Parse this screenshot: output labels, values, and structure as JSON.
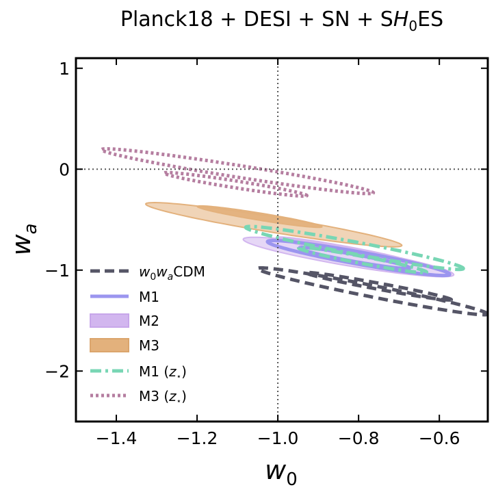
{
  "chart_data": {
    "type": "contour",
    "title": {
      "main": "Planck18 + DESI + SN + S",
      "italic": "H",
      "subscript": "0",
      "suffix": "ES"
    },
    "xlabel": {
      "base": "w",
      "sub": "0"
    },
    "ylabel": {
      "base": "w",
      "sub": "a"
    },
    "xlim": [
      -1.5,
      -0.48
    ],
    "ylim": [
      -2.5,
      1.1
    ],
    "xticks": [
      -1.4,
      -1.2,
      -1.0,
      -0.8,
      -0.6
    ],
    "xtick_labels": [
      "−1.4",
      "−1.2",
      "−1.0",
      "−0.8",
      "−0.6"
    ],
    "yticks": [
      -2,
      -1,
      0,
      1
    ],
    "ytick_labels": [
      "−2",
      "−1",
      "0",
      "1"
    ],
    "reference_lines": {
      "w0": -1.0,
      "wa": 0.0
    },
    "colors": {
      "w0waCDM": "#555566",
      "M1": "#9b95ef",
      "M2": "#d2b6ef",
      "M3": "#e3b17c",
      "M1_zstar": "#78d6b4",
      "M3_zstar": "#b57ea0"
    },
    "legend": {
      "placement": "lower-left",
      "entries": [
        {
          "key": "w0waCDM",
          "style": "dashed",
          "label_parts": [
            "w",
            "0",
            "w",
            "a",
            "CDM"
          ]
        },
        {
          "key": "M1",
          "style": "solid",
          "label": "M1"
        },
        {
          "key": "M2",
          "style": "patch",
          "label": "M2"
        },
        {
          "key": "M3",
          "style": "patch",
          "label": "M3"
        },
        {
          "key": "M1_zstar",
          "style": "dashdot",
          "label_main": "M1 (",
          "label_italic": "z",
          "label_sub": "⋆",
          "label_end": ")"
        },
        {
          "key": "M3_zstar",
          "style": "dotted",
          "label_main": "M3 (",
          "label_italic": "z",
          "label_sub": "⋆",
          "label_end": ")"
        }
      ]
    },
    "series": [
      {
        "name": "w0waCDM",
        "style": "dashed",
        "filled": false,
        "contours": [
          {
            "level": "68%",
            "cx": -0.75,
            "cy": -1.16,
            "theta": -37,
            "a": 0.224,
            "b": 0.0245
          },
          {
            "level": "95%",
            "cx": -0.765,
            "cy": -1.21,
            "theta": -39,
            "a": 0.365,
            "b": 0.045
          }
        ]
      },
      {
        "name": "M2",
        "style": "fill",
        "filled": true,
        "contours": [
          {
            "level": "95%",
            "cx": -0.825,
            "cy": -0.87,
            "theta": -36,
            "a": 0.318,
            "b": 0.072
          },
          {
            "level": "68%",
            "cx": -0.835,
            "cy": -0.8,
            "theta": -37,
            "a": 0.21,
            "b": 0.031
          }
        ]
      },
      {
        "name": "M1",
        "style": "solid",
        "filled": false,
        "contours": [
          {
            "level": "68%",
            "cx": -0.81,
            "cy": -0.88,
            "theta": -37,
            "a": 0.17,
            "b": 0.028
          },
          {
            "level": "95%",
            "cx": -0.8,
            "cy": -0.88,
            "theta": -37,
            "a": 0.28,
            "b": 0.05
          }
        ]
      },
      {
        "name": "M1_zstar",
        "style": "dashdot",
        "filled": false,
        "contours": [
          {
            "level": "68%",
            "cx": -0.79,
            "cy": -0.9,
            "theta": -38,
            "a": 0.2,
            "b": 0.028
          },
          {
            "level": "95%",
            "cx": -0.81,
            "cy": -0.78,
            "theta": -38,
            "a": 0.34,
            "b": 0.048
          }
        ]
      },
      {
        "name": "M3",
        "style": "fill",
        "filled": true,
        "contours": [
          {
            "level": "95%",
            "cx": -1.01,
            "cy": -0.55,
            "theta": -34,
            "a": 0.38,
            "b": 0.065
          },
          {
            "level": "68%",
            "cx": -1.045,
            "cy": -0.47,
            "theta": -34,
            "a": 0.185,
            "b": 0.03
          }
        ]
      },
      {
        "name": "M3_zstar",
        "style": "dotted",
        "filled": false,
        "contours": [
          {
            "level": "68%",
            "cx": -1.105,
            "cy": -0.15,
            "theta": -33,
            "a": 0.21,
            "b": 0.029
          },
          {
            "level": "95%",
            "cx": -1.1,
            "cy": -0.02,
            "theta": -33,
            "a": 0.4,
            "b": 0.05
          }
        ]
      }
    ]
  }
}
